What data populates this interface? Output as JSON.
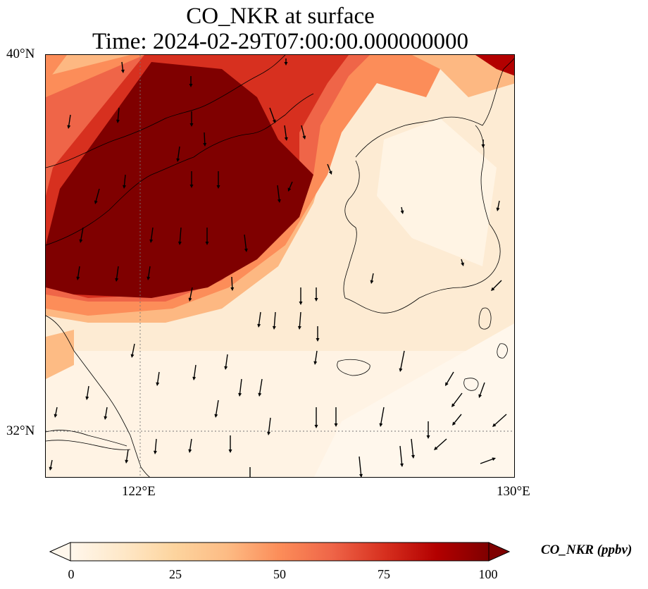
{
  "title": {
    "line1": "CO_NKR at surface",
    "line2": "Time: 2024-02-29T07:00:00.000000000"
  },
  "map": {
    "lon_range": [
      119,
      130
    ],
    "lat_range": [
      30.9,
      40
    ],
    "lat_ticks": [
      {
        "value": 40,
        "label": "40°N"
      },
      {
        "value": 32,
        "label": "32°N"
      }
    ],
    "lon_ticks": [
      {
        "value": 122,
        "label": "122°E"
      },
      {
        "value": 130,
        "label": "130°E"
      }
    ],
    "gridlines": "dotted",
    "field": "CO_NKR",
    "field_range": [
      0,
      100
    ],
    "wind_vectors": true
  },
  "colorbar": {
    "title": "CO_NKR (ppbv)",
    "ticks": [
      "0",
      "25",
      "50",
      "75",
      "100"
    ],
    "extend": "both",
    "colormap": "OrRd",
    "colors": [
      "#fff7ec",
      "#fee8c8",
      "#fdd49e",
      "#fdbb84",
      "#fc8d59",
      "#ef6548",
      "#d7301f",
      "#b30000",
      "#7f0000"
    ]
  }
}
